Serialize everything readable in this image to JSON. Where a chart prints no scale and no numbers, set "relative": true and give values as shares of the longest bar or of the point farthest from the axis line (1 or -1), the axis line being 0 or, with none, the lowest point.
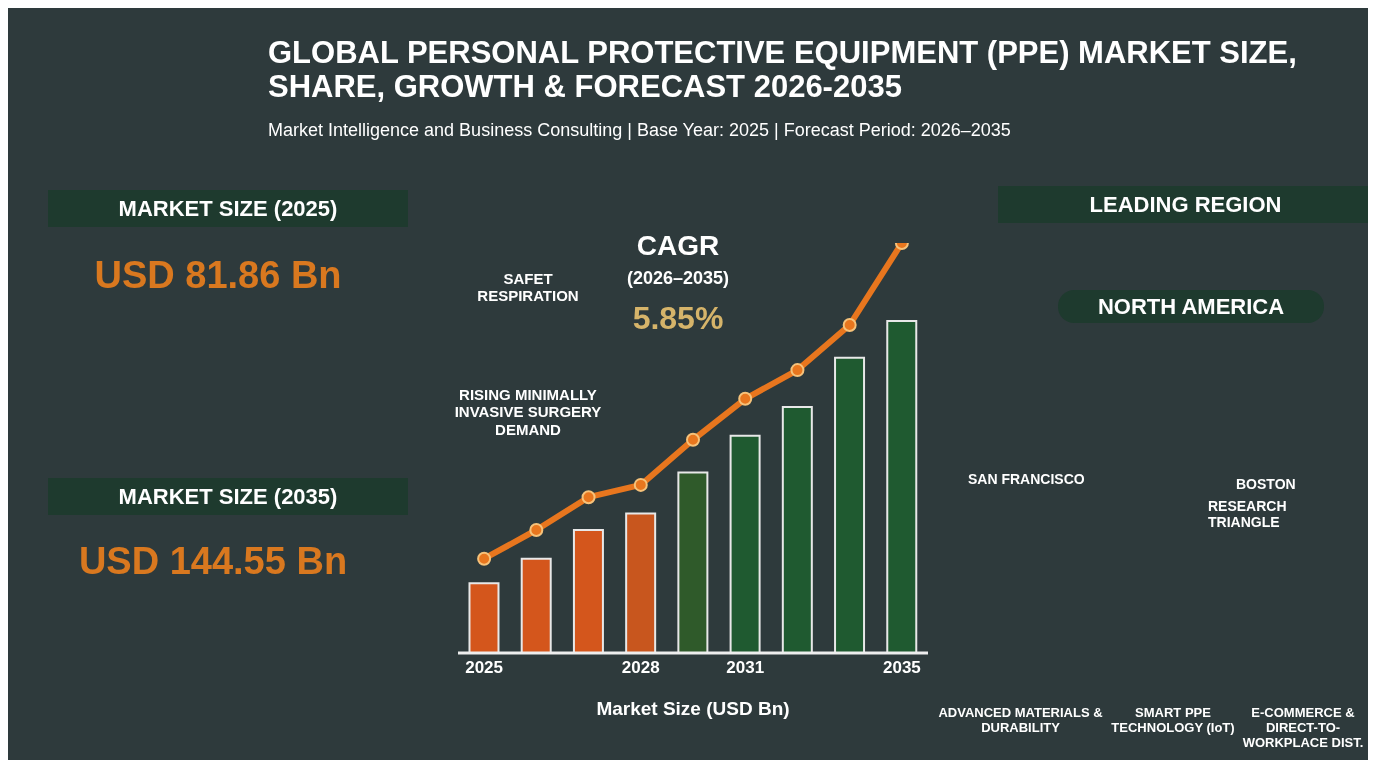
{
  "chart_data": {
    "type": "bar",
    "title": "GLOBAL PERSONAL PROTECTIVE EQUIPMENT (PPE) MARKET SIZE, SHARE, GROWTH & FORECAST 2026-2035",
    "subtitle": "Market Intelligence and Business Consulting | Base Year: 2025 | Forecast Period: 2026–2035",
    "xlabel": "Market Size (USD Bn)",
    "categories": [
      "2025",
      null,
      null,
      "2028",
      null,
      "2031",
      null,
      null,
      "2035"
    ],
    "relative": true,
    "marker": "circle",
    "series": [
      {
        "colors": [
          "#d4561c",
          "#d4561c",
          "#d4561c",
          "#c8561e",
          "#2f5a2a",
          "#1f5a30",
          "#1f5a30",
          "#1f5a30",
          "#1f5a30"
        ],
        "values": [
          0.17,
          0.23,
          0.3,
          0.34,
          0.44,
          0.53,
          0.6,
          0.72,
          0.81
        ]
      },
      {
        "type": "line",
        "color": "#e8761e",
        "values": [
          0.23,
          0.3,
          0.38,
          0.41,
          0.52,
          0.62,
          0.69,
          0.8,
          1.0
        ]
      }
    ],
    "annotations": [
      "MARKET SIZE (2025)",
      "USD 81.86 Bn",
      "MARKET SIZE (2035)",
      "USD 144.55 Bn",
      "CAGR",
      "(2026–2035)",
      "5.85%",
      "SAFET RESPIRATION",
      "RISING MINIMALLY INVASIVE SURGERY DEMAND",
      "LEADING REGION",
      "NORTH AMERICA",
      "SAN FRANCISCO",
      "BOSTON",
      "RESEARCH TRIANGLE",
      "ADVANCED MATERIALS & DURABILITY",
      "SMART PPE TECHNOLOGY (IoT)",
      "E-COMMERCE & DIRECT-TO-WORKPLACE DIST."
    ]
  }
}
